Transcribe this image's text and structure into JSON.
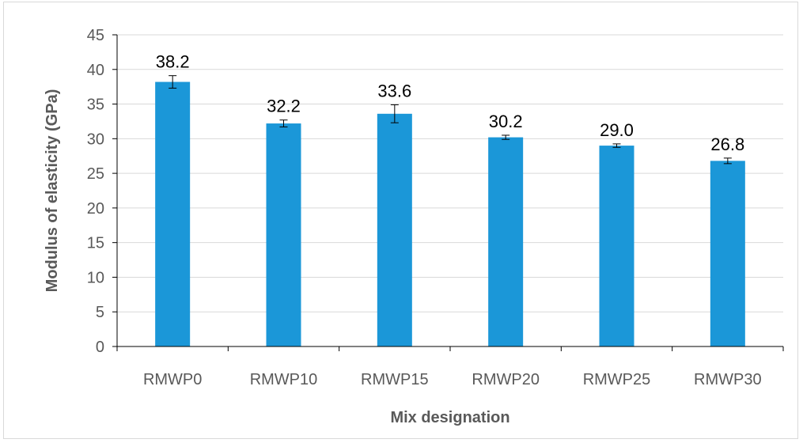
{
  "chart_data": {
    "type": "bar",
    "title": "",
    "xlabel": "Mix designation",
    "ylabel": "Modulus of elasticity (GPa)",
    "categories": [
      "RMWP0",
      "RMWP10",
      "RMWP15",
      "RMWP20",
      "RMWP25",
      "RMWP30"
    ],
    "values": [
      38.2,
      32.2,
      33.6,
      30.2,
      29.0,
      26.8
    ],
    "data_labels": [
      "38.2",
      "32.2",
      "33.6",
      "30.2",
      "29.0",
      "26.8"
    ],
    "error": [
      0.9,
      0.5,
      1.3,
      0.3,
      0.25,
      0.4
    ],
    "ylim": [
      0,
      45
    ],
    "yticks": [
      0,
      5,
      10,
      15,
      20,
      25,
      30,
      35,
      40,
      45
    ],
    "grid": true,
    "legend": "none",
    "colors": {
      "bar": "#1B97D8",
      "grid": "#d9d9d9",
      "axis": "#000000",
      "text": "#595959"
    }
  }
}
